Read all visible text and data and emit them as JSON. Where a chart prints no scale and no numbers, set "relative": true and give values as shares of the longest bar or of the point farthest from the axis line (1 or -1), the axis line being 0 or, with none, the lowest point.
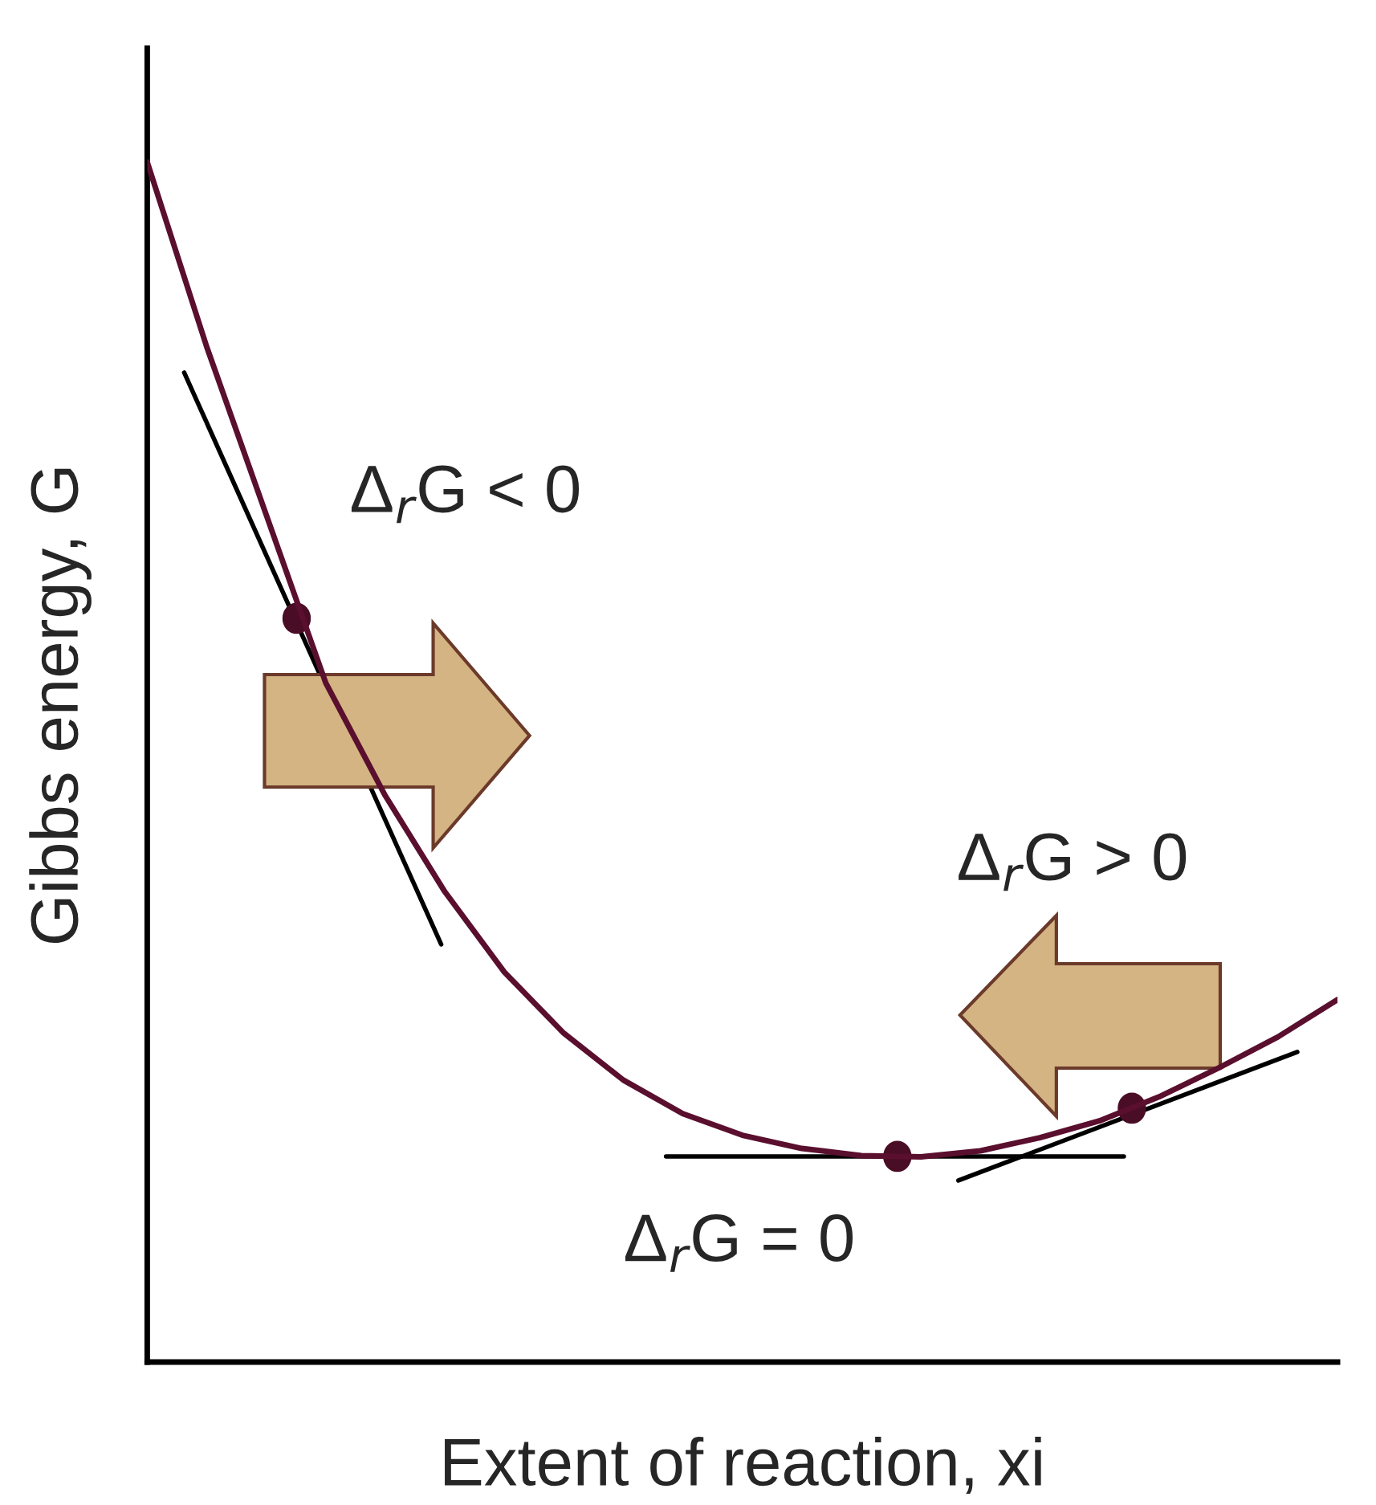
{
  "chart_data": {
    "type": "line",
    "relative": true,
    "xlabel": "Extent of reaction, xi",
    "ylabel": "Gibbs energy, G",
    "categories": [
      null,
      null,
      null,
      null,
      null,
      null,
      null,
      null,
      null,
      null,
      null,
      null,
      null,
      null,
      null,
      null,
      null,
      null,
      null,
      null,
      null
    ],
    "series": [
      {
        "color": "#5a0f2e",
        "values": [
          1,
          0.846,
          0.706,
          0.566,
          0.472,
          0.392,
          0.325,
          0.274,
          0.235,
          0.207,
          0.189,
          0.178,
          0.172,
          0.171,
          0.176,
          0.187,
          0.201,
          0.221,
          0.245,
          0.271,
          0.302
        ]
      }
    ],
    "annotations": [
      "Δ$_{r}$G < 0",
      "Δ$_{r}$G > 0",
      "Δ$_{r}$G = 0"
    ],
    "legend": false,
    "grid": false
  }
}
